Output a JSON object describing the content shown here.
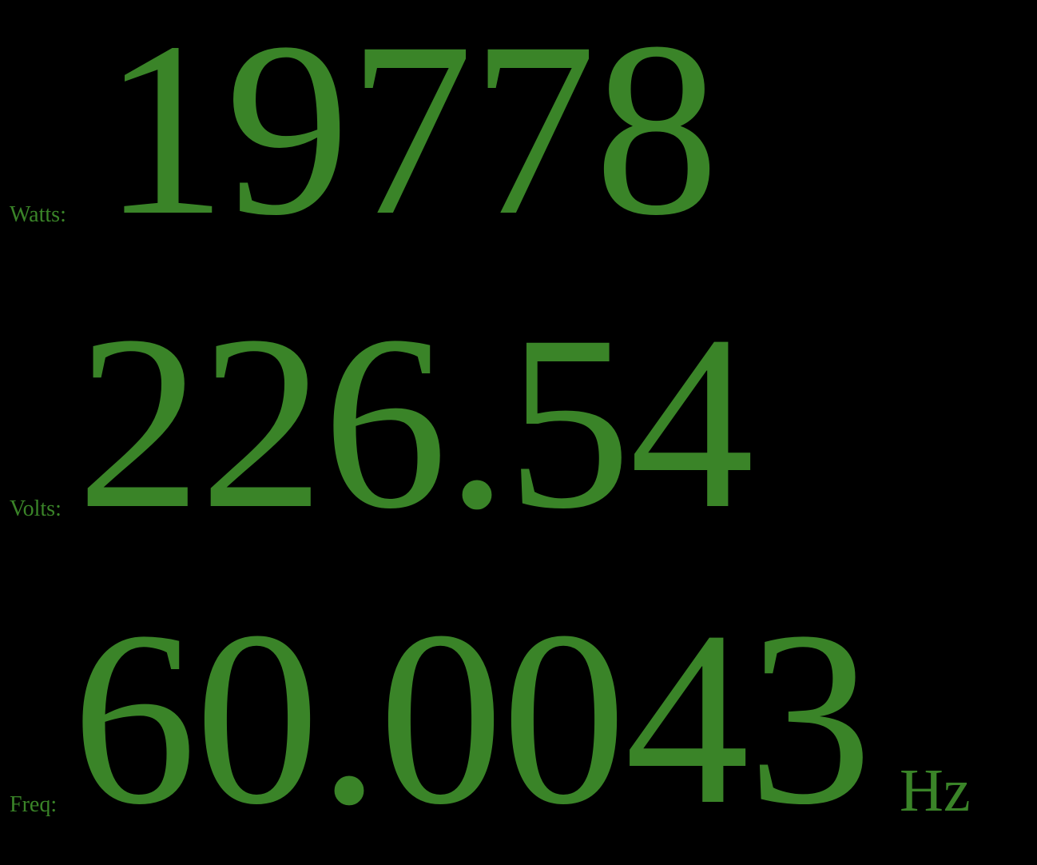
{
  "readings": {
    "watts": {
      "label": "Watts:",
      "value": "19778"
    },
    "volts": {
      "label": "Volts:",
      "value": "226.54"
    },
    "freq": {
      "label": "Freq:",
      "value": "60.0043",
      "unit": "Hz"
    }
  },
  "colors": {
    "background": "#000000",
    "text": "#3a8428"
  }
}
